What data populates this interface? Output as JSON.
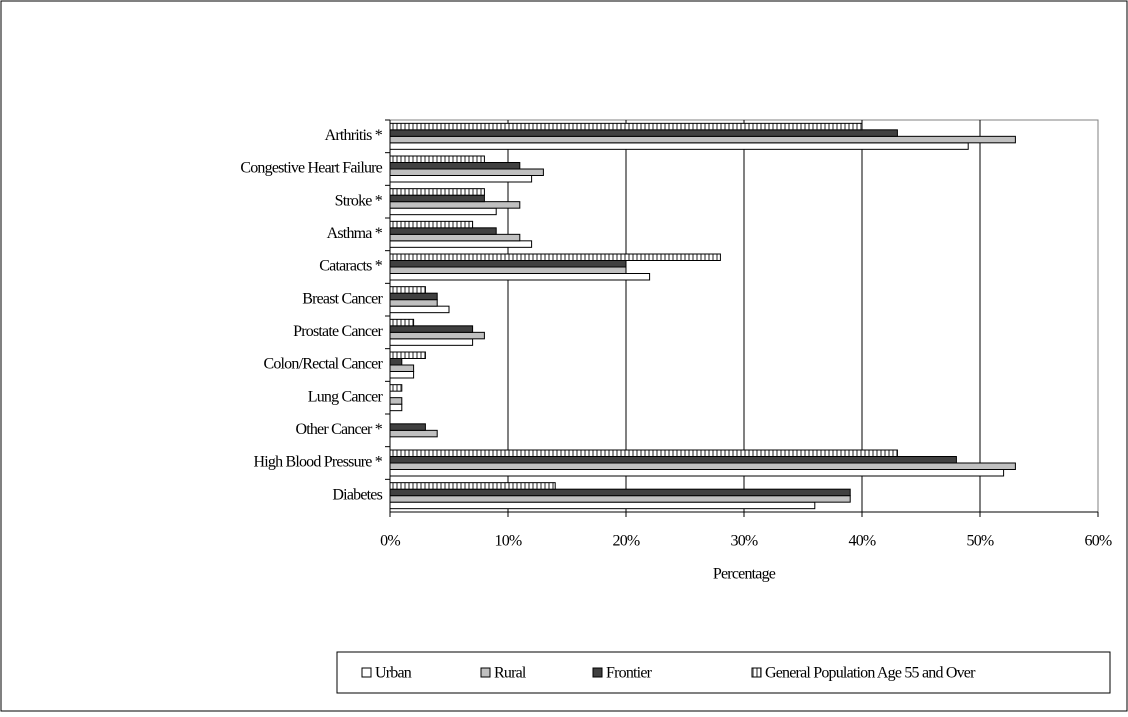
{
  "chart_data": {
    "type": "bar",
    "orientation": "horizontal",
    "x_label": "Percentage",
    "categories": [
      "Arthritis *",
      "Congestive Heart Failure",
      "Stroke *",
      "Asthma *",
      "Cataracts *",
      "Breast Cancer",
      "Prostate Cancer",
      "Colon/Rectal Cancer",
      "Lung Cancer",
      "Other Cancer *",
      "High Blood Pressure *",
      "Diabetes"
    ],
    "series": [
      {
        "name": "Urban",
        "color": "#ffffff",
        "values": [
          49,
          12,
          9,
          12,
          22,
          5,
          7,
          2,
          1,
          0,
          52,
          36
        ]
      },
      {
        "name": "Rural",
        "color": "#c0c0c0",
        "values": [
          53,
          13,
          11,
          11,
          20,
          4,
          8,
          2,
          1,
          4,
          53,
          39
        ]
      },
      {
        "name": "Frontier",
        "color": "#404040",
        "values": [
          43,
          11,
          8,
          9,
          20,
          4,
          7,
          1,
          0,
          3,
          48,
          39
        ]
      },
      {
        "name": "General Population Age 55 and Over",
        "color": "#909090",
        "pattern": "stripes",
        "values": [
          40,
          8,
          8,
          7,
          28,
          3,
          2,
          3,
          1,
          0,
          43,
          14
        ]
      }
    ],
    "xlim": [
      0,
      60
    ],
    "xticks": [
      {
        "value": 0,
        "label": "0%"
      },
      {
        "value": 10,
        "label": "10%"
      },
      {
        "value": 20,
        "label": "20%"
      },
      {
        "value": 30,
        "label": "30%"
      },
      {
        "value": 40,
        "label": "40%"
      },
      {
        "value": 50,
        "label": "50%"
      },
      {
        "value": 60,
        "label": "60%"
      }
    ],
    "grid": true,
    "legend": "bottom"
  }
}
